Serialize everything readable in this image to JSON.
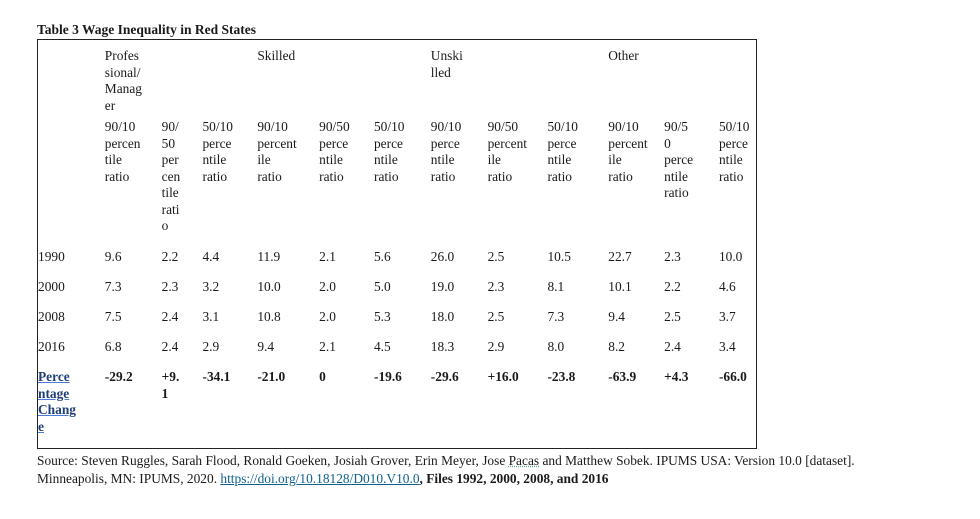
{
  "title": "Table 3 Wage Inequality in Red States",
  "groups": {
    "professional": "Profes\nsional/\nManag\ner",
    "skilled": "Skilled",
    "unskilled": "Unski\nlled",
    "other": "Other"
  },
  "subheaders": [
    "90/10\npercen\ntile\nratio",
    "90/\n50\nper\ncen\ntile\nrati\no",
    "50/10\nperce\nntile\nratio",
    "90/10\npercent\nile\nratio",
    "90/50\nperce\nntile\nratio",
    "50/10\nperce\nntile\nratio",
    "90/10\nperce\nntile\nratio",
    "90/50\npercent\nile\nratio",
    "50/10\nperce\nntile\nratio",
    "90/10\npercent\nile\nratio",
    "90/5\n0\nperce\nntile\nratio",
    "50/10\nperce\nntile\nratio"
  ],
  "rows": [
    {
      "year": "1990",
      "values": [
        "9.6",
        "2.2",
        "4.4",
        "11.9",
        "2.1",
        "5.6",
        "26.0",
        "2.5",
        "10.5",
        "22.7",
        "2.3",
        "10.0"
      ]
    },
    {
      "year": "2000",
      "values": [
        "7.3",
        "2.3",
        "3.2",
        "10.0",
        "2.0",
        "5.0",
        "19.0",
        "2.3",
        "8.1",
        "10.1",
        "2.2",
        "4.6"
      ]
    },
    {
      "year": "2008",
      "values": [
        "7.5",
        "2.4",
        "3.1",
        "10.8",
        "2.0",
        "5.3",
        "18.0",
        "2.5",
        "7.3",
        "9.4",
        "2.5",
        "3.7"
      ]
    },
    {
      "year": "2016",
      "values": [
        "6.8",
        "2.4",
        "2.9",
        "9.4",
        "2.1",
        "4.5",
        "18.3",
        "2.9",
        "8.0",
        "8.2",
        "2.4",
        "3.4"
      ]
    }
  ],
  "percentage_change": {
    "label": "Perce\nntage\nChang\ne",
    "values": [
      "-29.2",
      "+9.\n1",
      "-34.1",
      "-21.0",
      "0",
      "-19.6",
      "-29.6",
      "+16.0",
      "-23.8",
      "-63.9",
      "+4.3",
      "-66.0"
    ]
  },
  "source": {
    "text1": "Source: Steven Ruggles, Sarah Flood, Ronald Goeken, Josiah Grover, Erin Meyer, Jose ",
    "pacas": "Pacas",
    "text2": " and Matthew Sobek. IPUMS USA: Version 10.0 [dataset].",
    "text3": "Minneapolis, MN: IPUMS, 2020. ",
    "link": "https://doi.org/10.18128/D010.V10.0",
    "files": ", Files 1992, 2000, 2008, and 2016"
  }
}
